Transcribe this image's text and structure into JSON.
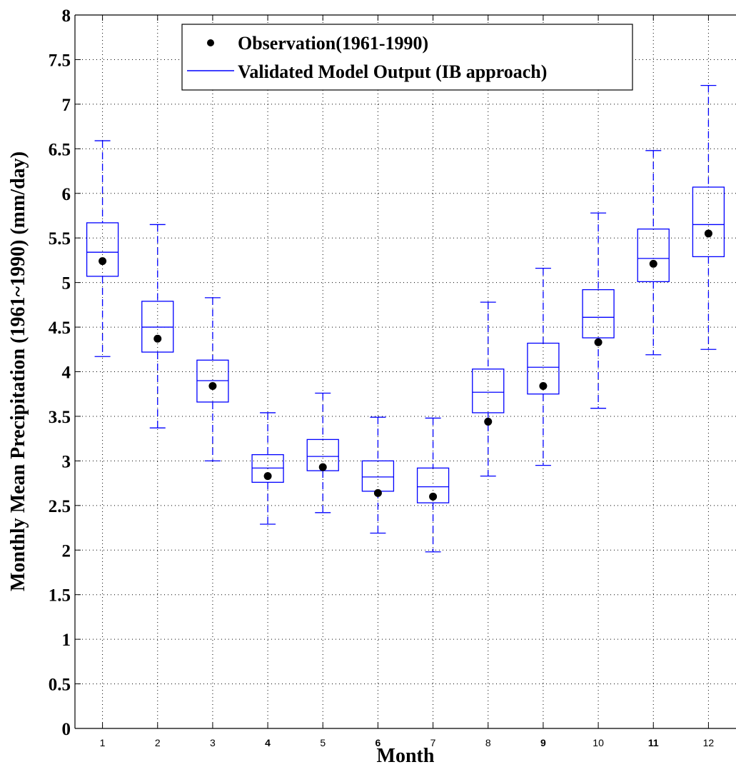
{
  "chart_data": {
    "type": "box",
    "title": "",
    "xlabel": "Month",
    "ylabel": "Monthly Mean Precipitation (1961~1990) (mm/day)",
    "ylim": [
      0,
      8
    ],
    "yticks": [
      "0",
      "0.5",
      "1",
      "1.5",
      "2",
      "2.5",
      "3",
      "3.5",
      "4",
      "4.5",
      "5",
      "5.5",
      "6",
      "6.5",
      "7",
      "7.5",
      "8"
    ],
    "categories": [
      "1",
      "2",
      "3",
      "4",
      "5",
      "6",
      "7",
      "8",
      "9",
      "10",
      "11",
      "12"
    ],
    "bold_categories": [
      "4",
      "6",
      "9",
      "11"
    ],
    "grid": true,
    "legend_position": "top-center",
    "legend": [
      {
        "label": "Observation(1961-1990)",
        "marker": "dot",
        "color": "#000000"
      },
      {
        "label": "Validated Model Output (IB approach)",
        "marker": "line",
        "color": "#0000ff"
      }
    ],
    "model_boxes": [
      {
        "month": "1",
        "whisker_low": 4.17,
        "q1": 5.07,
        "median": 5.34,
        "q3": 5.67,
        "whisker_high": 6.59
      },
      {
        "month": "2",
        "whisker_low": 3.37,
        "q1": 4.22,
        "median": 4.5,
        "q3": 4.79,
        "whisker_high": 5.65
      },
      {
        "month": "3",
        "whisker_low": 3.0,
        "q1": 3.66,
        "median": 3.9,
        "q3": 4.13,
        "whisker_high": 4.83
      },
      {
        "month": "4",
        "whisker_low": 2.29,
        "q1": 2.76,
        "median": 2.92,
        "q3": 3.07,
        "whisker_high": 3.54
      },
      {
        "month": "5",
        "whisker_low": 2.42,
        "q1": 2.89,
        "median": 3.05,
        "q3": 3.24,
        "whisker_high": 3.76
      },
      {
        "month": "6",
        "whisker_low": 2.19,
        "q1": 2.66,
        "median": 2.82,
        "q3": 3.0,
        "whisker_high": 3.49
      },
      {
        "month": "7",
        "whisker_low": 1.98,
        "q1": 2.53,
        "median": 2.71,
        "q3": 2.92,
        "whisker_high": 3.48
      },
      {
        "month": "8",
        "whisker_low": 2.83,
        "q1": 3.54,
        "median": 3.77,
        "q3": 4.03,
        "whisker_high": 4.78
      },
      {
        "month": "9",
        "whisker_low": 2.95,
        "q1": 3.75,
        "median": 4.05,
        "q3": 4.32,
        "whisker_high": 5.16
      },
      {
        "month": "10",
        "whisker_low": 3.59,
        "q1": 4.38,
        "median": 4.61,
        "q3": 4.92,
        "whisker_high": 5.78
      },
      {
        "month": "11",
        "whisker_low": 4.19,
        "q1": 5.01,
        "median": 5.27,
        "q3": 5.6,
        "whisker_high": 6.48
      },
      {
        "month": "12",
        "whisker_low": 4.25,
        "q1": 5.29,
        "median": 5.65,
        "q3": 6.07,
        "whisker_high": 7.21
      }
    ],
    "observations": [
      5.24,
      4.37,
      3.84,
      2.83,
      2.93,
      2.64,
      2.6,
      3.44,
      3.84,
      4.33,
      5.21,
      5.55
    ],
    "colors": {
      "model": "#0000ff",
      "observation": "#000000",
      "grid": "#000000",
      "axes": "#000000"
    }
  }
}
